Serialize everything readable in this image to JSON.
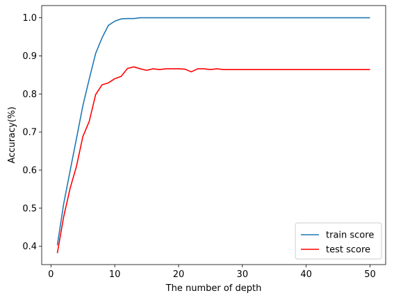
{
  "chart_data": {
    "type": "line",
    "title": "",
    "xlabel": "The number of depth",
    "ylabel": "Accuracy(%)",
    "xlim": [
      -1.45,
      52.45
    ],
    "ylim": [
      0.352,
      1.032
    ],
    "xticks": [
      0,
      10,
      20,
      30,
      40,
      50
    ],
    "yticks": [
      0.4,
      0.5,
      0.6,
      0.7,
      0.8,
      0.9,
      1.0
    ],
    "ytick_labels": [
      "0.4",
      "0.5",
      "0.6",
      "0.7",
      "0.8",
      "0.9",
      "1.0"
    ],
    "grid": false,
    "legend_position": "lower-right",
    "x": [
      1,
      2,
      3,
      4,
      5,
      6,
      7,
      8,
      9,
      10,
      11,
      12,
      13,
      14,
      15,
      16,
      17,
      18,
      19,
      20,
      21,
      22,
      23,
      24,
      25,
      26,
      27,
      28,
      29,
      30,
      31,
      32,
      33,
      34,
      35,
      36,
      37,
      38,
      39,
      40,
      41,
      42,
      43,
      44,
      45,
      46,
      47,
      48,
      49,
      50
    ],
    "series": [
      {
        "name": "train score",
        "color": "#1f77b4",
        "values": [
          0.403,
          0.512,
          0.598,
          0.683,
          0.769,
          0.839,
          0.906,
          0.947,
          0.98,
          0.991,
          0.997,
          0.998,
          0.998,
          1.0,
          1.0,
          1.0,
          1.0,
          1.0,
          1.0,
          1.0,
          1.0,
          1.0,
          1.0,
          1.0,
          1.0,
          1.0,
          1.0,
          1.0,
          1.0,
          1.0,
          1.0,
          1.0,
          1.0,
          1.0,
          1.0,
          1.0,
          1.0,
          1.0,
          1.0,
          1.0,
          1.0,
          1.0,
          1.0,
          1.0,
          1.0,
          1.0,
          1.0,
          1.0,
          1.0,
          1.0
        ]
      },
      {
        "name": "test score",
        "color": "#ff0000",
        "values": [
          0.382,
          0.478,
          0.552,
          0.61,
          0.688,
          0.728,
          0.798,
          0.824,
          0.829,
          0.84,
          0.846,
          0.867,
          0.871,
          0.866,
          0.862,
          0.866,
          0.864,
          0.866,
          0.866,
          0.866,
          0.865,
          0.858,
          0.866,
          0.866,
          0.864,
          0.866,
          0.864,
          0.864,
          0.864,
          0.864,
          0.864,
          0.864,
          0.864,
          0.864,
          0.864,
          0.864,
          0.864,
          0.864,
          0.864,
          0.864,
          0.864,
          0.864,
          0.864,
          0.864,
          0.864,
          0.864,
          0.864,
          0.864,
          0.864,
          0.864
        ]
      }
    ]
  }
}
